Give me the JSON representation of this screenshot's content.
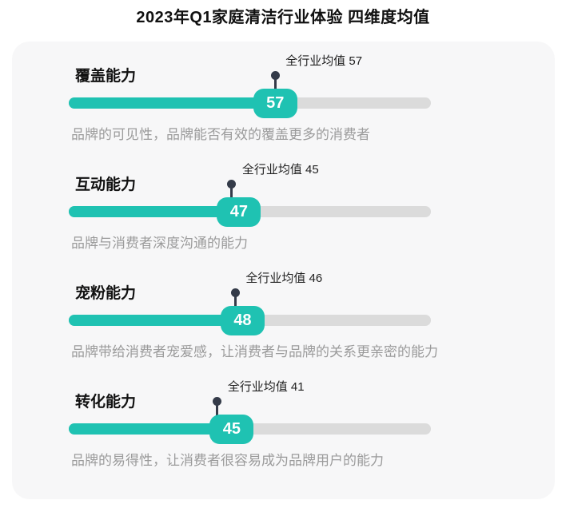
{
  "title": "2023年Q1家庭清洁行业体验 四维度均值",
  "colors": {
    "accent": "#1fc2b2",
    "track": "#dbdbdb",
    "pin": "#343b49",
    "card_bg": "#f7f7f8",
    "desc_text": "#9b9b9b"
  },
  "chart_data": {
    "type": "bar",
    "title": "2023年Q1家庭清洁行业体验 四维度均值",
    "xlabel": "",
    "ylabel": "",
    "xlim": [
      0,
      100
    ],
    "grid": false,
    "legend": false,
    "rows": [
      {
        "label": "覆盖能力",
        "value": 57,
        "industry_avg": 57,
        "avg_label": "全行业均值 57",
        "description": "品牌的可见性，品牌能否有效的覆盖更多的消费者"
      },
      {
        "label": "互动能力",
        "value": 47,
        "industry_avg": 45,
        "avg_label": "全行业均值 45",
        "description": "品牌与消费者深度沟通的能力"
      },
      {
        "label": "宠粉能力",
        "value": 48,
        "industry_avg": 46,
        "avg_label": "全行业均值 46",
        "description": "品牌带给消费者宠爱感，让消费者与品牌的关系更亲密的能力"
      },
      {
        "label": "转化能力",
        "value": 45,
        "industry_avg": 41,
        "avg_label": "全行业均值 41",
        "description": "品牌的易得性，让消费者很容易成为品牌用户的能力"
      }
    ]
  }
}
